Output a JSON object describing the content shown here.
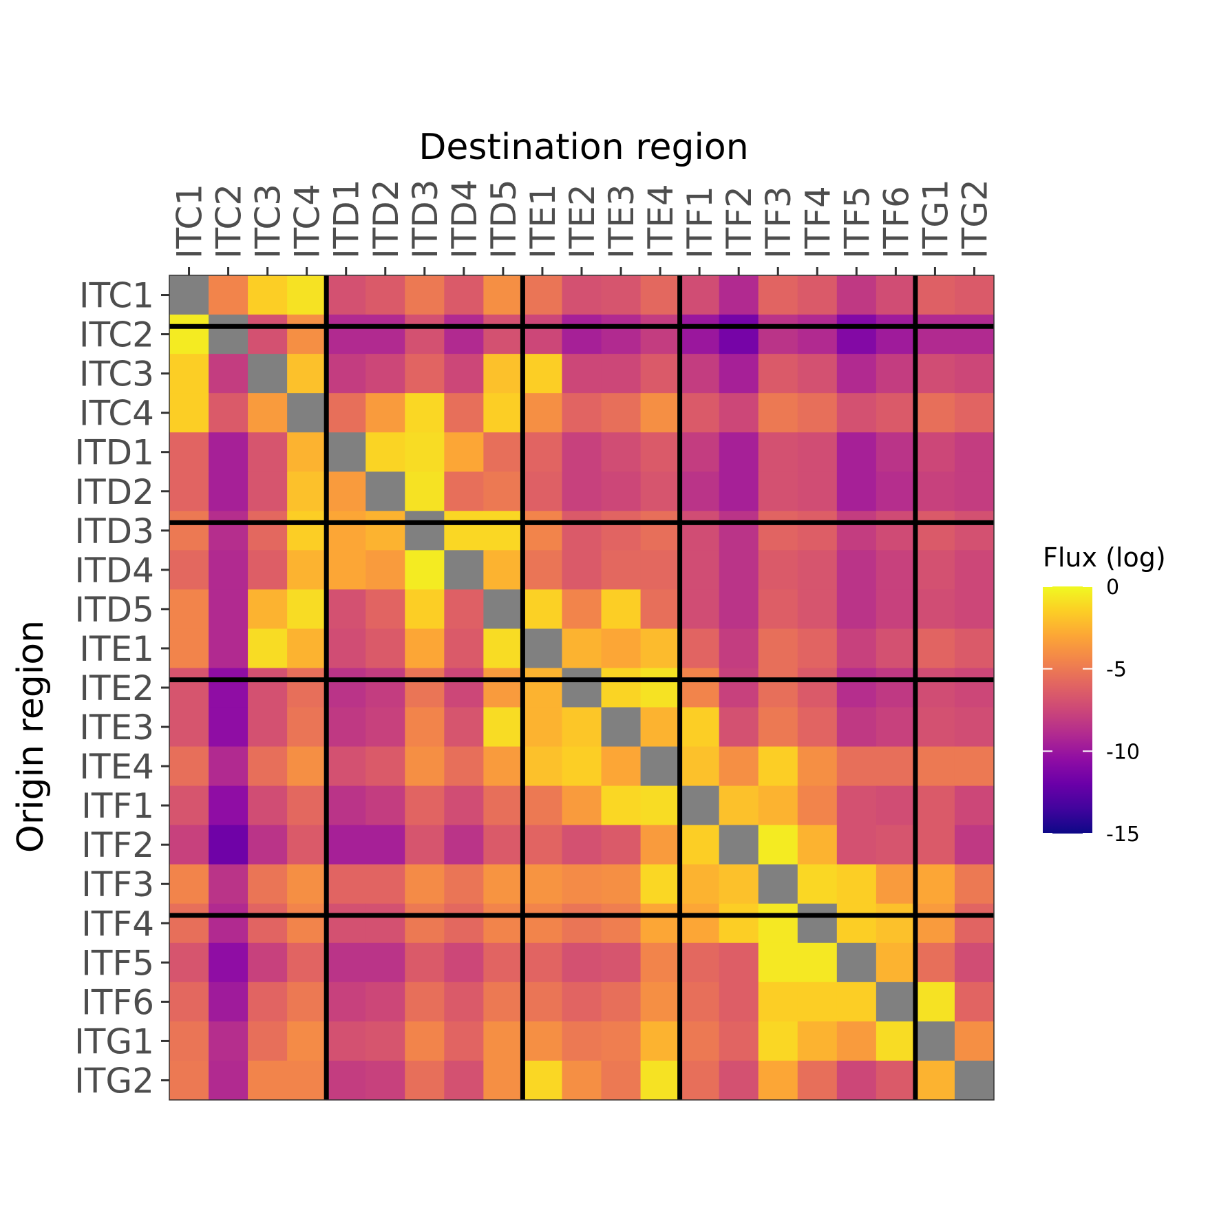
{
  "chart_data": {
    "type": "heatmap",
    "title": "",
    "xlabel": "Destination region",
    "ylabel": "Origin region",
    "x_position": "top",
    "categories": [
      "ITC1",
      "ITC2",
      "ITC3",
      "ITC4",
      "ITD1",
      "ITD2",
      "ITD3",
      "ITD4",
      "ITD5",
      "ITE1",
      "ITE2",
      "ITE3",
      "ITE4",
      "ITF1",
      "ITF2",
      "ITF3",
      "ITF4",
      "ITF5",
      "ITF6",
      "ITG1",
      "ITG2"
    ],
    "group_boundaries_after_index": [
      3,
      8,
      12,
      18
    ],
    "diagonal": "NA",
    "na_color": "#808080",
    "colorscale": "plasma",
    "legend": {
      "title": "Flux (log)",
      "range": [
        -15,
        0
      ],
      "ticks": [
        0,
        -5,
        -10,
        -15
      ],
      "position": "right"
    },
    "values": [
      [
        null,
        -4.5,
        -1.5,
        -0.8,
        -7.0,
        -6.5,
        -5.0,
        -6.5,
        -4.0,
        -5.2,
        -7.0,
        -6.8,
        -5.8,
        -7.2,
        -9.0,
        -6.0,
        -6.5,
        -8.2,
        -7.2,
        -6.2,
        -6.5
      ],
      [
        -0.5,
        null,
        -7.0,
        -4.0,
        -9.0,
        -9.0,
        -7.0,
        -9.0,
        -7.0,
        -7.5,
        -9.5,
        -9.0,
        -8.0,
        -10.0,
        -11.5,
        -8.5,
        -9.0,
        -11.0,
        -9.8,
        -9.0,
        -9.0
      ],
      [
        -1.5,
        -8.0,
        null,
        -2.0,
        -8.0,
        -7.5,
        -6.0,
        -7.5,
        -2.0,
        -1.5,
        -7.5,
        -7.5,
        -6.5,
        -8.0,
        -9.5,
        -6.5,
        -7.0,
        -9.0,
        -8.0,
        -7.2,
        -7.5
      ],
      [
        -1.5,
        -6.5,
        -3.5,
        null,
        -5.5,
        -3.5,
        -1.2,
        -5.5,
        -1.5,
        -4.0,
        -6.0,
        -5.5,
        -4.0,
        -6.5,
        -7.5,
        -5.0,
        -5.5,
        -7.0,
        -6.5,
        -5.5,
        -6.0
      ],
      [
        -6.0,
        -9.5,
        -6.8,
        -2.5,
        null,
        -1.3,
        -1.0,
        -3.0,
        -5.5,
        -6.0,
        -7.8,
        -7.2,
        -6.5,
        -8.0,
        -9.5,
        -7.0,
        -7.2,
        -9.5,
        -8.5,
        -7.5,
        -8.0
      ],
      [
        -6.0,
        -9.5,
        -6.8,
        -2.0,
        -3.5,
        null,
        -0.8,
        -5.5,
        -5.0,
        -6.2,
        -7.8,
        -7.5,
        -6.8,
        -8.5,
        -9.5,
        -7.0,
        -7.2,
        -9.5,
        -8.8,
        -7.8,
        -8.0
      ],
      [
        -5.0,
        -8.8,
        -5.8,
        -1.5,
        -3.0,
        -2.5,
        null,
        -1.2,
        -1.2,
        -4.5,
        -6.5,
        -6.0,
        -5.5,
        -7.2,
        -8.5,
        -6.0,
        -6.3,
        -8.0,
        -7.3,
        -6.5,
        -7.0
      ],
      [
        -5.8,
        -9.0,
        -6.3,
        -2.5,
        -3.0,
        -3.5,
        -0.5,
        null,
        -2.5,
        -5.2,
        -6.5,
        -5.8,
        -5.8,
        -7.2,
        -8.5,
        -6.5,
        -6.8,
        -8.5,
        -7.8,
        -7.0,
        -7.5
      ],
      [
        -4.5,
        -9.0,
        -2.5,
        -1.0,
        -7.0,
        -6.0,
        -1.5,
        -6.2,
        null,
        -1.4,
        -4.5,
        -1.5,
        -5.5,
        -7.2,
        -8.5,
        -6.3,
        -6.8,
        -8.5,
        -7.8,
        -7.2,
        -7.5
      ],
      [
        -4.5,
        -9.0,
        -1.0,
        -2.5,
        -7.2,
        -6.5,
        -3.0,
        -6.5,
        -1.0,
        null,
        -2.5,
        -3.0,
        -2.2,
        -6.0,
        -8.0,
        -5.5,
        -6.0,
        -7.8,
        -7.0,
        -6.0,
        -6.5
      ],
      [
        -6.8,
        -10.5,
        -7.0,
        -5.5,
        -8.5,
        -8.0,
        -5.2,
        -7.5,
        -3.5,
        -2.5,
        null,
        -1.3,
        -0.8,
        -4.5,
        -7.8,
        -5.5,
        -6.5,
        -8.8,
        -8.2,
        -7.2,
        -7.5
      ],
      [
        -6.8,
        -10.5,
        -7.0,
        -5.2,
        -8.2,
        -7.8,
        -4.5,
        -6.8,
        -1.0,
        -2.5,
        -1.8,
        null,
        -2.5,
        -1.5,
        -7.0,
        -5.0,
        -6.0,
        -8.2,
        -7.8,
        -7.0,
        -7.2
      ],
      [
        -5.5,
        -9.0,
        -5.5,
        -4.0,
        -7.0,
        -6.5,
        -4.0,
        -5.5,
        -3.5,
        -2.0,
        -1.5,
        -3.0,
        null,
        -2.0,
        -4.0,
        -1.5,
        -4.0,
        -5.5,
        -5.5,
        -5.0,
        -5.0
      ],
      [
        -6.8,
        -10.5,
        -7.2,
        -5.8,
        -8.5,
        -8.0,
        -6.0,
        -7.2,
        -5.5,
        -5.0,
        -3.5,
        -1.2,
        -1.0,
        null,
        -2.0,
        -2.5,
        -4.5,
        -7.0,
        -7.2,
        -6.5,
        -7.5
      ],
      [
        -7.8,
        -11.8,
        -8.5,
        -6.5,
        -9.5,
        -9.5,
        -6.8,
        -8.5,
        -6.5,
        -6.0,
        -7.0,
        -6.5,
        -3.5,
        -1.5,
        null,
        -0.5,
        -2.5,
        -7.0,
        -6.8,
        -6.5,
        -8.2
      ],
      [
        -4.5,
        -8.5,
        -5.2,
        -4.0,
        -6.0,
        -6.0,
        -4.2,
        -5.2,
        -3.8,
        -3.8,
        -4.2,
        -4.0,
        -1.2,
        -2.5,
        -2.0,
        null,
        -1.2,
        -1.5,
        -3.5,
        -3.0,
        -5.0
      ],
      [
        -5.5,
        -9.0,
        -6.0,
        -4.5,
        -7.0,
        -7.0,
        -5.0,
        -5.8,
        -4.5,
        -4.5,
        -5.2,
        -4.8,
        -3.0,
        -3.0,
        -1.5,
        -0.6,
        null,
        -1.5,
        -2.0,
        -3.5,
        -6.0
      ],
      [
        -6.8,
        -10.5,
        -7.8,
        -6.0,
        -8.5,
        -8.5,
        -6.5,
        -7.5,
        -6.0,
        -6.0,
        -7.0,
        -6.8,
        -4.5,
        -5.8,
        -6.3,
        -0.6,
        -0.6,
        null,
        -2.5,
        -5.5,
        -7.2
      ],
      [
        -5.8,
        -9.8,
        -6.0,
        -5.0,
        -7.8,
        -7.5,
        -5.5,
        -6.5,
        -5.0,
        -5.2,
        -6.0,
        -5.5,
        -4.0,
        -5.5,
        -6.3,
        -1.5,
        -1.5,
        -1.5,
        null,
        -0.8,
        -6.0
      ],
      [
        -5.2,
        -8.8,
        -5.5,
        -4.2,
        -7.0,
        -6.8,
        -4.5,
        -6.0,
        -4.0,
        -4.0,
        -5.0,
        -4.8,
        -2.5,
        -5.0,
        -6.0,
        -1.2,
        -2.5,
        -3.5,
        -1.0,
        null,
        -4.0
      ],
      [
        -5.0,
        -9.0,
        -4.5,
        -4.5,
        -8.0,
        -7.8,
        -5.5,
        -7.0,
        -4.0,
        -1.2,
        -4.0,
        -5.0,
        -0.8,
        -5.5,
        -7.0,
        -3.0,
        -5.5,
        -7.5,
        -6.5,
        -2.5,
        null
      ]
    ]
  }
}
